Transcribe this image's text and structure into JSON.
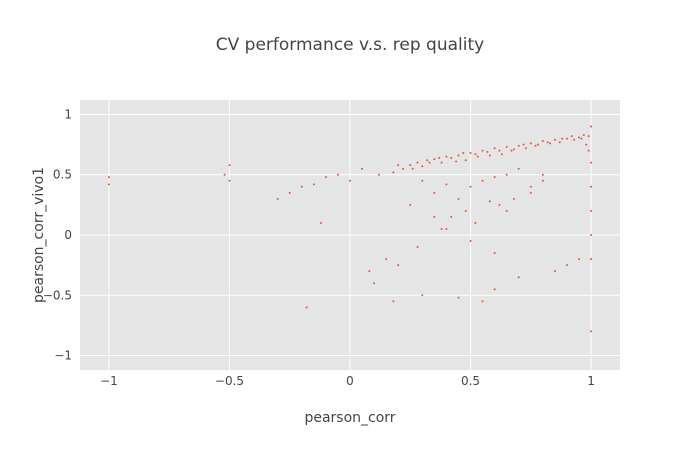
{
  "chart_data": {
    "type": "scatter",
    "title": "CV performance v.s. rep quality",
    "xlabel": "pearson_corr",
    "ylabel": "pearson_corr_vivo1",
    "xlim": [
      -1.12,
      1.12
    ],
    "ylim": [
      -1.12,
      1.12
    ],
    "x_ticks": [
      -1,
      -0.5,
      0,
      0.5,
      1
    ],
    "y_ticks": [
      -1,
      -0.5,
      0,
      0.5,
      1
    ],
    "x_tick_labels": [
      "−1",
      "−0.5",
      "0",
      "0.5",
      "1"
    ],
    "y_tick_labels": [
      "−1",
      "−0.5",
      "0",
      "0.5",
      "1"
    ],
    "grid": true,
    "legend": "none",
    "colors": {
      "marker": "#e8553a",
      "plot_bg": "#e5e5e5",
      "grid": "#ffffff",
      "text": "#444444"
    },
    "series": [
      {
        "marker_size": 1,
        "x": [
          0.12,
          0.18,
          0.22,
          0.25,
          0.28,
          0.3,
          0.32,
          0.35,
          0.38,
          0.4,
          0.42,
          0.45,
          0.48,
          0.5,
          0.52,
          0.55,
          0.58,
          0.6,
          0.62,
          0.65,
          0.68,
          0.7,
          0.72,
          0.75,
          0.78,
          0.8,
          0.82,
          0.85,
          0.88,
          0.9,
          0.92,
          0.95,
          0.97,
          0.99,
          0.2,
          0.26,
          0.33,
          0.37,
          0.44,
          0.47,
          0.53,
          0.57,
          0.63,
          0.67,
          0.73,
          0.77,
          0.83,
          0.87,
          0.93,
          0.96,
          0.3,
          0.4,
          0.5,
          0.55,
          0.6,
          0.65,
          0.7,
          0.45,
          0.35,
          0.58,
          0.48,
          0.42,
          0.62,
          0.68,
          0.75,
          0.8,
          0.52,
          0.38,
          1.0,
          1.0,
          1.0,
          1.0,
          1.0,
          0.99,
          0.98,
          0.05,
          0.0,
          -0.05,
          -0.1,
          -0.15,
          -0.2,
          -0.25,
          -0.3,
          -0.5,
          -0.5,
          -0.52,
          -1.0,
          -1.0,
          0.15,
          0.2,
          0.1,
          0.3,
          0.45,
          0.55,
          0.6,
          0.7,
          0.85,
          0.9,
          0.95,
          0.25,
          0.35,
          0.4,
          0.65,
          0.75,
          0.8,
          -0.18,
          -0.12,
          0.08,
          0.18,
          1.0,
          1.0,
          0.28,
          0.5,
          0.6
        ],
        "y": [
          0.5,
          0.52,
          0.55,
          0.58,
          0.6,
          0.57,
          0.62,
          0.63,
          0.6,
          0.65,
          0.64,
          0.66,
          0.62,
          0.68,
          0.67,
          0.7,
          0.66,
          0.72,
          0.7,
          0.73,
          0.71,
          0.74,
          0.75,
          0.76,
          0.75,
          0.78,
          0.77,
          0.79,
          0.8,
          0.8,
          0.82,
          0.81,
          0.83,
          0.82,
          0.58,
          0.55,
          0.6,
          0.64,
          0.61,
          0.68,
          0.65,
          0.69,
          0.67,
          0.7,
          0.72,
          0.74,
          0.76,
          0.77,
          0.79,
          0.8,
          0.45,
          0.42,
          0.4,
          0.45,
          0.48,
          0.5,
          0.55,
          0.3,
          0.35,
          0.28,
          0.2,
          0.15,
          0.25,
          0.3,
          0.4,
          0.5,
          0.1,
          0.05,
          0.6,
          0.4,
          0.2,
          0.0,
          -0.2,
          0.7,
          0.75,
          0.55,
          0.45,
          0.5,
          0.48,
          0.42,
          0.4,
          0.35,
          0.3,
          0.58,
          0.45,
          0.5,
          0.48,
          0.42,
          -0.2,
          -0.25,
          -0.4,
          -0.5,
          -0.52,
          -0.55,
          -0.45,
          -0.35,
          -0.3,
          -0.25,
          -0.2,
          0.25,
          0.15,
          0.05,
          0.2,
          0.35,
          0.45,
          -0.6,
          0.1,
          -0.3,
          -0.55,
          -0.8,
          0.9,
          -0.1,
          -0.05,
          -0.15
        ]
      }
    ]
  }
}
